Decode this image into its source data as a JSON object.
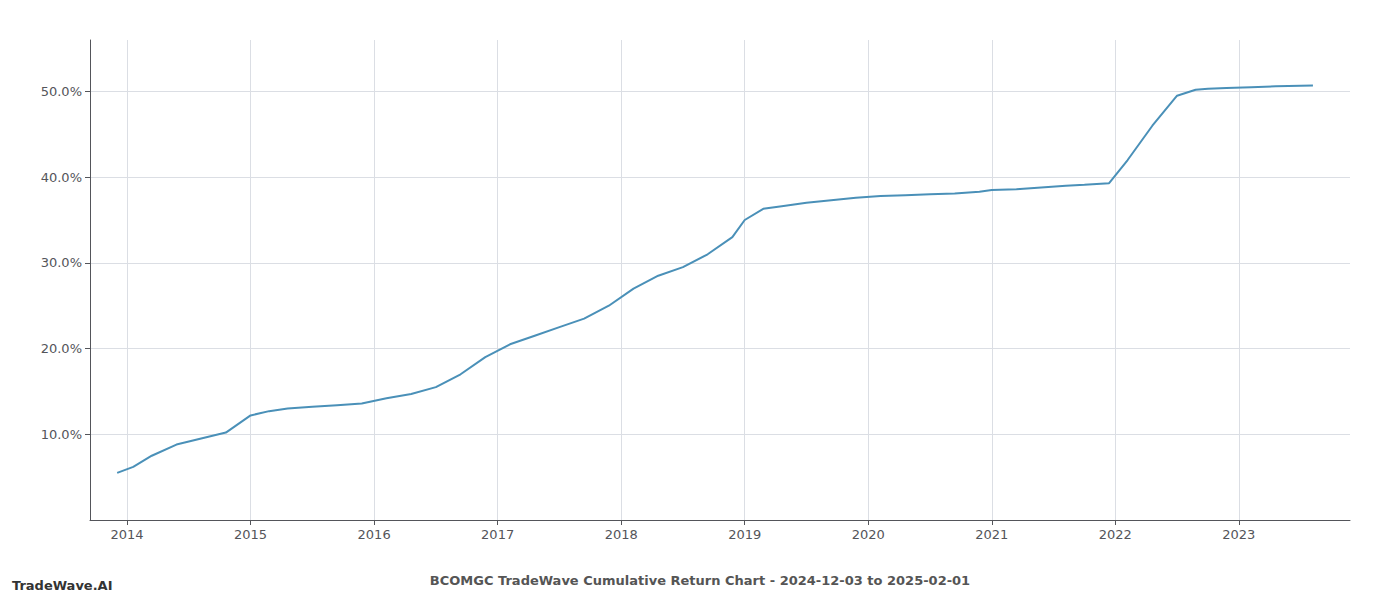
{
  "chart_data": {
    "type": "line",
    "title": "BCOMGC TradeWave Cumulative Return Chart - 2024-12-03 to 2025-02-01",
    "annotations": [
      "TradeWave.AI"
    ],
    "x": [
      2013.92,
      2014.05,
      2014.2,
      2014.4,
      2014.6,
      2014.8,
      2015.0,
      2015.15,
      2015.3,
      2015.5,
      2015.7,
      2015.9,
      2016.1,
      2016.3,
      2016.5,
      2016.7,
      2016.9,
      2017.1,
      2017.3,
      2017.5,
      2017.7,
      2017.9,
      2018.1,
      2018.3,
      2018.5,
      2018.7,
      2018.9,
      2019.0,
      2019.15,
      2019.3,
      2019.5,
      2019.7,
      2019.9,
      2020.1,
      2020.3,
      2020.5,
      2020.7,
      2020.9,
      2021.0,
      2021.2,
      2021.4,
      2021.6,
      2021.75,
      2021.85,
      2021.95,
      2022.1,
      2022.3,
      2022.5,
      2022.65,
      2022.75,
      2022.9,
      2023.1,
      2023.3,
      2023.6
    ],
    "values": [
      5.5,
      6.2,
      7.5,
      8.8,
      9.5,
      10.2,
      12.2,
      12.7,
      13.0,
      13.2,
      13.4,
      13.6,
      14.2,
      14.7,
      15.5,
      17.0,
      19.0,
      20.5,
      21.5,
      22.5,
      23.5,
      25.0,
      27.0,
      28.5,
      29.5,
      31.0,
      33.0,
      35.0,
      36.3,
      36.6,
      37.0,
      37.3,
      37.6,
      37.8,
      37.9,
      38.0,
      38.1,
      38.3,
      38.5,
      38.6,
      38.8,
      39.0,
      39.1,
      39.2,
      39.3,
      42.0,
      46.0,
      49.5,
      50.2,
      50.3,
      50.4,
      50.5,
      50.6,
      50.7
    ],
    "color": "#4a90b8",
    "xlim": [
      2013.7,
      2023.9
    ],
    "ylim": [
      0,
      56
    ],
    "xticks": [
      2014,
      2015,
      2016,
      2017,
      2018,
      2019,
      2020,
      2021,
      2022,
      2023
    ],
    "yticks": [
      {
        "value": 10,
        "label": "10.0%"
      },
      {
        "value": 20,
        "label": "20.0%"
      },
      {
        "value": 30,
        "label": "30.0%"
      },
      {
        "value": 40,
        "label": "40.0%"
      },
      {
        "value": 50,
        "label": "50.0%"
      }
    ],
    "grid": true
  }
}
